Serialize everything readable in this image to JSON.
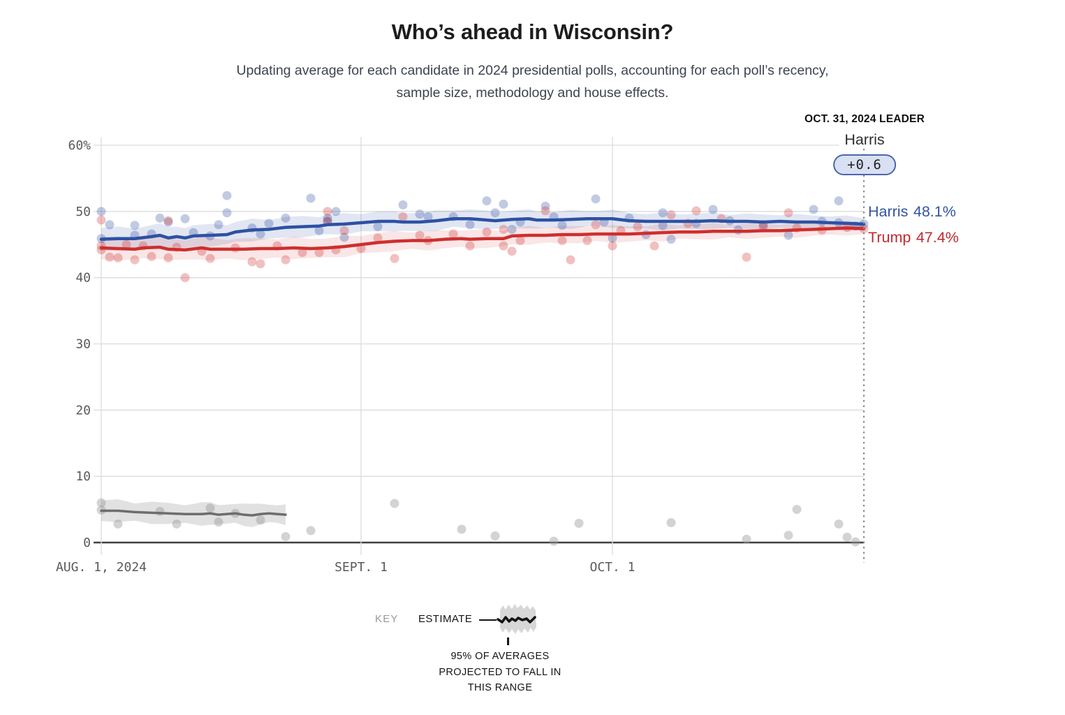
{
  "title": "Who’s ahead in Wisconsin?",
  "subtitle_line1": "Updating average for each candidate in 2024 presidential polls, accounting for each poll’s recency,",
  "subtitle_line2": "sample size, methodology and house effects.",
  "leader": {
    "date_label": "OCT. 31, 2024 LEADER",
    "name": "Harris",
    "margin": "+0.6"
  },
  "end_labels": {
    "harris": {
      "name": "Harris",
      "value": "48.1%"
    },
    "trump": {
      "name": "Trump",
      "value": "47.4%"
    }
  },
  "key": {
    "label": "KEY",
    "estimate": "ESTIMATE",
    "caption_lines": [
      "95% OF AVERAGES",
      "PROJECTED TO FALL IN",
      "THIS RANGE"
    ]
  },
  "colors": {
    "harris_blue": "#2d51a3",
    "trump_red": "#cf2e2e",
    "gray_line": "#6d6d6d",
    "gridline": "#dcdcdc",
    "axis": "#3f3f3f",
    "badge_bg": "#d9e0f3",
    "badge_border": "#4a67ad",
    "leader_dotted": "#8c8c8c"
  },
  "chart_data": {
    "type": "line",
    "title": "Who’s ahead in Wisconsin?",
    "x_axis": {
      "unit": "days since Aug 1, 2024",
      "end_day": 91,
      "ticks": [
        {
          "day": 0,
          "label": "AUG. 1, 2024"
        },
        {
          "day": 31,
          "label": "SEPT. 1"
        },
        {
          "day": 61,
          "label": "OCT. 1"
        }
      ]
    },
    "y_axis": {
      "range": [
        0,
        60
      ],
      "ticks": [
        {
          "v": 60,
          "label": "60%"
        },
        {
          "v": 50,
          "label": "50"
        },
        {
          "v": 40,
          "label": "40"
        },
        {
          "v": 30,
          "label": "30"
        },
        {
          "v": 20,
          "label": "20"
        },
        {
          "v": 10,
          "label": "10"
        },
        {
          "v": 0,
          "label": "0"
        }
      ]
    },
    "leader_day": 91,
    "series": [
      {
        "id": "harris",
        "name": "Harris",
        "final_value": 48.1,
        "color": "#2d51a3",
        "width": 4.5,
        "band_color": "#2d51a3",
        "band_opacity": 0.14,
        "dot_color": "#2d51a3",
        "dot_opacity": 0.3,
        "band": {
          "start": 1.7,
          "end": 1.0,
          "wobble": 0.18
        },
        "line": [
          [
            0,
            45.8
          ],
          [
            2,
            45.9
          ],
          [
            4,
            45.9
          ],
          [
            6,
            46.2
          ],
          [
            7,
            46.4
          ],
          [
            8,
            46.0
          ],
          [
            9,
            46.2
          ],
          [
            10,
            46.0
          ],
          [
            11,
            46.3
          ],
          [
            13,
            46.4
          ],
          [
            15,
            46.5
          ],
          [
            16,
            46.9
          ],
          [
            18,
            47.2
          ],
          [
            20,
            47.3
          ],
          [
            22,
            47.6
          ],
          [
            24,
            47.7
          ],
          [
            26,
            47.8
          ],
          [
            27,
            48.0
          ],
          [
            29,
            48.1
          ],
          [
            31,
            48.3
          ],
          [
            33,
            48.5
          ],
          [
            35,
            48.5
          ],
          [
            36,
            48.4
          ],
          [
            38,
            48.4
          ],
          [
            40,
            48.6
          ],
          [
            42,
            48.9
          ],
          [
            44,
            48.9
          ],
          [
            46,
            48.7
          ],
          [
            47,
            48.6
          ],
          [
            49,
            48.8
          ],
          [
            51,
            48.9
          ],
          [
            52,
            48.7
          ],
          [
            54,
            48.7
          ],
          [
            56,
            48.8
          ],
          [
            58,
            48.9
          ],
          [
            60,
            48.9
          ],
          [
            61,
            48.9
          ],
          [
            63,
            48.6
          ],
          [
            65,
            48.5
          ],
          [
            67,
            48.5
          ],
          [
            69,
            48.5
          ],
          [
            71,
            48.5
          ],
          [
            73,
            48.6
          ],
          [
            75,
            48.5
          ],
          [
            77,
            48.5
          ],
          [
            79,
            48.4
          ],
          [
            81,
            48.5
          ],
          [
            83,
            48.4
          ],
          [
            85,
            48.4
          ],
          [
            87,
            48.3
          ],
          [
            89,
            48.2
          ],
          [
            91,
            48.1
          ]
        ],
        "dots": [
          [
            0,
            50.0
          ],
          [
            0,
            45.9
          ],
          [
            1,
            48.0
          ],
          [
            4,
            47.9
          ],
          [
            4,
            46.4
          ],
          [
            6,
            46.6
          ],
          [
            7,
            49.0
          ],
          [
            8,
            48.4
          ],
          [
            10,
            48.9
          ],
          [
            11,
            46.8
          ],
          [
            13,
            46.3
          ],
          [
            14,
            48.0
          ],
          [
            15,
            52.4
          ],
          [
            15,
            49.8
          ],
          [
            18,
            47.5
          ],
          [
            19,
            46.6
          ],
          [
            20,
            48.2
          ],
          [
            22,
            49.0
          ],
          [
            25,
            52.0
          ],
          [
            26,
            47.1
          ],
          [
            27,
            48.5
          ],
          [
            27,
            49.0
          ],
          [
            28,
            50.0
          ],
          [
            29,
            46.1
          ],
          [
            33,
            47.7
          ],
          [
            36,
            51.0
          ],
          [
            38,
            49.6
          ],
          [
            39,
            49.2
          ],
          [
            42,
            49.2
          ],
          [
            44,
            48.0
          ],
          [
            46,
            51.6
          ],
          [
            47,
            49.8
          ],
          [
            48,
            51.1
          ],
          [
            49,
            47.3
          ],
          [
            50,
            48.4
          ],
          [
            53,
            50.8
          ],
          [
            54,
            49.2
          ],
          [
            55,
            47.9
          ],
          [
            59,
            51.9
          ],
          [
            60,
            48.4
          ],
          [
            61,
            46.0
          ],
          [
            63,
            49.0
          ],
          [
            65,
            46.5
          ],
          [
            67,
            49.8
          ],
          [
            67,
            47.9
          ],
          [
            68,
            45.8
          ],
          [
            71,
            48.2
          ],
          [
            73,
            50.3
          ],
          [
            75,
            48.6
          ],
          [
            76,
            47.2
          ],
          [
            79,
            48.0
          ],
          [
            82,
            46.4
          ],
          [
            85,
            50.3
          ],
          [
            86,
            48.5
          ],
          [
            88,
            51.6
          ],
          [
            88,
            48.3
          ],
          [
            90,
            47.8
          ],
          [
            91,
            48.1
          ]
        ]
      },
      {
        "id": "trump",
        "name": "Trump",
        "final_value": 47.4,
        "color": "#cf2e2e",
        "width": 4.5,
        "band_color": "#cf2e2e",
        "band_opacity": 0.12,
        "dot_color": "#cf2e2e",
        "dot_opacity": 0.3,
        "band": {
          "start": 1.7,
          "end": 0.95,
          "wobble": 0.18
        },
        "line": [
          [
            0,
            44.5
          ],
          [
            2,
            44.4
          ],
          [
            4,
            44.3
          ],
          [
            5,
            44.5
          ],
          [
            7,
            44.6
          ],
          [
            8,
            44.3
          ],
          [
            10,
            44.2
          ],
          [
            12,
            44.5
          ],
          [
            13,
            44.3
          ],
          [
            15,
            44.3
          ],
          [
            17,
            44.3
          ],
          [
            19,
            44.4
          ],
          [
            21,
            44.4
          ],
          [
            23,
            44.5
          ],
          [
            25,
            44.4
          ],
          [
            27,
            44.5
          ],
          [
            29,
            44.7
          ],
          [
            31,
            45.0
          ],
          [
            33,
            45.3
          ],
          [
            35,
            45.5
          ],
          [
            37,
            45.6
          ],
          [
            39,
            45.6
          ],
          [
            41,
            45.8
          ],
          [
            43,
            45.9
          ],
          [
            44,
            45.8
          ],
          [
            46,
            45.9
          ],
          [
            48,
            45.9
          ],
          [
            49,
            46.3
          ],
          [
            51,
            46.4
          ],
          [
            53,
            46.4
          ],
          [
            55,
            46.5
          ],
          [
            57,
            46.5
          ],
          [
            59,
            46.6
          ],
          [
            61,
            46.6
          ],
          [
            63,
            46.6
          ],
          [
            65,
            46.7
          ],
          [
            67,
            46.8
          ],
          [
            69,
            46.9
          ],
          [
            71,
            46.9
          ],
          [
            73,
            47.0
          ],
          [
            75,
            47.0
          ],
          [
            77,
            47.0
          ],
          [
            79,
            47.1
          ],
          [
            81,
            47.1
          ],
          [
            83,
            47.2
          ],
          [
            85,
            47.3
          ],
          [
            87,
            47.4
          ],
          [
            89,
            47.5
          ],
          [
            91,
            47.4
          ]
        ],
        "dots": [
          [
            0,
            48.7
          ],
          [
            0,
            44.8
          ],
          [
            0,
            44.2
          ],
          [
            1,
            43.1
          ],
          [
            2,
            43.0
          ],
          [
            3,
            45.0
          ],
          [
            4,
            42.7
          ],
          [
            5,
            44.8
          ],
          [
            6,
            43.2
          ],
          [
            8,
            48.6
          ],
          [
            8,
            43.0
          ],
          [
            9,
            44.6
          ],
          [
            10,
            40.0
          ],
          [
            12,
            44.0
          ],
          [
            13,
            42.9
          ],
          [
            16,
            44.5
          ],
          [
            18,
            42.4
          ],
          [
            19,
            42.1
          ],
          [
            21,
            44.8
          ],
          [
            22,
            42.7
          ],
          [
            24,
            43.8
          ],
          [
            26,
            43.8
          ],
          [
            27,
            50.0
          ],
          [
            27,
            48.5
          ],
          [
            28,
            44.2
          ],
          [
            29,
            47.1
          ],
          [
            31,
            44.4
          ],
          [
            33,
            46.0
          ],
          [
            35,
            42.9
          ],
          [
            36,
            49.2
          ],
          [
            38,
            46.4
          ],
          [
            39,
            45.6
          ],
          [
            42,
            46.6
          ],
          [
            44,
            44.8
          ],
          [
            46,
            46.9
          ],
          [
            48,
            47.3
          ],
          [
            48,
            44.8
          ],
          [
            49,
            44.0
          ],
          [
            50,
            45.6
          ],
          [
            53,
            50.1
          ],
          [
            55,
            45.6
          ],
          [
            56,
            42.7
          ],
          [
            58,
            45.6
          ],
          [
            59,
            48.0
          ],
          [
            61,
            44.8
          ],
          [
            62,
            47.1
          ],
          [
            64,
            47.7
          ],
          [
            66,
            44.8
          ],
          [
            68,
            49.5
          ],
          [
            70,
            48.2
          ],
          [
            71,
            50.1
          ],
          [
            74,
            48.9
          ],
          [
            77,
            43.1
          ],
          [
            79,
            47.7
          ],
          [
            82,
            49.8
          ],
          [
            83,
            47.5
          ],
          [
            86,
            47.2
          ],
          [
            89,
            47.6
          ],
          [
            91,
            47.4
          ]
        ]
      },
      {
        "id": "gray",
        "name": "",
        "final_value": 4.2,
        "color": "#6d6d6d",
        "width": 3.5,
        "band_color": "#bdbdbd",
        "band_opacity": 0.45,
        "dot_color": "#9e9e9e",
        "dot_opacity": 0.45,
        "band": {
          "start": 1.55,
          "end": 1.45,
          "wobble": 0.25
        },
        "line": [
          [
            0,
            4.8
          ],
          [
            2,
            4.8
          ],
          [
            4,
            4.6
          ],
          [
            6,
            4.5
          ],
          [
            8,
            4.4
          ],
          [
            10,
            4.3
          ],
          [
            12,
            4.3
          ],
          [
            13,
            4.4
          ],
          [
            14,
            4.2
          ],
          [
            16,
            4.4
          ],
          [
            17,
            4.2
          ],
          [
            18,
            4.1
          ],
          [
            19,
            4.3
          ],
          [
            20,
            4.4
          ],
          [
            21,
            4.3
          ],
          [
            22,
            4.2
          ]
        ],
        "dots": [
          [
            0,
            6.0
          ],
          [
            0,
            4.9
          ],
          [
            2,
            2.8
          ],
          [
            7,
            4.7
          ],
          [
            9,
            2.8
          ],
          [
            13,
            5.2
          ],
          [
            14,
            3.1
          ],
          [
            16,
            4.4
          ],
          [
            19,
            3.4
          ],
          [
            22,
            0.9
          ],
          [
            25,
            1.8
          ],
          [
            35,
            5.9
          ],
          [
            43,
            2.0
          ],
          [
            47,
            1.0
          ],
          [
            54,
            0.2
          ],
          [
            57,
            2.9
          ],
          [
            68,
            3.0
          ],
          [
            77,
            0.5
          ],
          [
            82,
            1.1
          ],
          [
            83,
            5.0
          ],
          [
            88,
            2.8
          ],
          [
            89,
            0.8
          ],
          [
            90,
            0.1
          ]
        ]
      }
    ]
  }
}
